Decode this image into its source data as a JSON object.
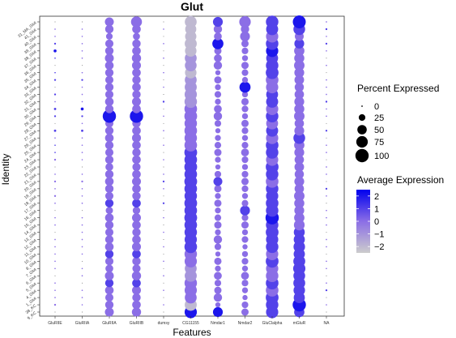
{
  "chart_data": {
    "type": "dot",
    "title": "Glut",
    "xlabel": "Features",
    "ylabel": "Identity",
    "features": [
      "GluRIIE",
      "GluRIIA",
      "GluRIIA",
      "GluRIIB",
      "dumsy",
      "CG11155",
      "Nmdar1",
      "Nmdar2",
      "GluClalpha",
      "mGluR",
      "NA"
    ],
    "identities": [
      "9_KC",
      "38_KC",
      "1_Glut",
      "4_Glut",
      "5_Glut",
      "6_Glut",
      "7_Glut",
      "8_Glut",
      "10_Glut",
      "11_Glut",
      "12_Glut",
      "13_Glut",
      "14_Glut",
      "15_Glut",
      "16_Glut",
      "17_Glut",
      "18_Glut",
      "19_Glut",
      "20_Glut",
      "21_Glut",
      "22_Glut",
      "23_Glut",
      "24_Glut",
      "25_Glut",
      "26_Glut",
      "27_Glut",
      "28_Glut",
      "29_Glut",
      "30_Glut",
      "31_Glut",
      "32_Glut",
      "33_Glut",
      "34_Glut",
      "35_Glut",
      "36_Glut",
      "37_Glut",
      "38_Glut",
      "39_Glut",
      "40_Glut",
      "41_Glut",
      "31_MA_Glut"
    ],
    "colorbar_range": [
      -2.5,
      2.5
    ],
    "color_low": "#cccccc",
    "color_high": "#0000ee",
    "size_legend": {
      "title": "Percent Expressed",
      "values": [
        0,
        25,
        50,
        75,
        100
      ],
      "labels": [
        "0",
        "25",
        "50",
        "75",
        "100"
      ]
    },
    "color_legend": {
      "title": "Average Expression",
      "ticks": [
        2,
        1,
        0,
        -1,
        -2
      ],
      "labels": [
        "2",
        "1",
        "0",
        "−1",
        "−2"
      ]
    },
    "columns": [
      {
        "feature": "GluRIIE",
        "pct": [
          0,
          2,
          1,
          1,
          1,
          0,
          1,
          1,
          1,
          1,
          1,
          0,
          1,
          1,
          0,
          1,
          2,
          1,
          2,
          1,
          0,
          2,
          1,
          1,
          1,
          3,
          0,
          2,
          3,
          1,
          2,
          0,
          2,
          1,
          0,
          1,
          5,
          2,
          1,
          1,
          0
        ],
        "avg": [
          0,
          0,
          0,
          0,
          0,
          0,
          0,
          0,
          0,
          0,
          0,
          0,
          0,
          0,
          0,
          0,
          0,
          0,
          0,
          0,
          0,
          0,
          1,
          1,
          0,
          1,
          0,
          1,
          1,
          0,
          1,
          0,
          1,
          1,
          0,
          1,
          2,
          1,
          0,
          0,
          0
        ]
      },
      {
        "feature": "GluRIIA",
        "pct": [
          0,
          1,
          1,
          1,
          0,
          1,
          1,
          0,
          1,
          1,
          1,
          1,
          1,
          1,
          0,
          1,
          1,
          1,
          2,
          1,
          0,
          1,
          1,
          1,
          1,
          3,
          1,
          2,
          5,
          1,
          1,
          1,
          2,
          1,
          0,
          1,
          1,
          1,
          1,
          1,
          0
        ],
        "avg": [
          0,
          0,
          0,
          0,
          0,
          0,
          0,
          0,
          0,
          0,
          0,
          0,
          0,
          0,
          0,
          0,
          0,
          0,
          0,
          0,
          0,
          0,
          0,
          0,
          0,
          1,
          0,
          1,
          2,
          0,
          0,
          0,
          1,
          0,
          0,
          0,
          0,
          0,
          0,
          0,
          0
        ]
      },
      {
        "feature": "GluRIIA",
        "pct": [
          45,
          40,
          38,
          42,
          40,
          45,
          35,
          38,
          40,
          42,
          40,
          38,
          40,
          42,
          30,
          40,
          38,
          40,
          42,
          40,
          35,
          40,
          38,
          40,
          42,
          40,
          38,
          100,
          40,
          42,
          38,
          40,
          38,
          40,
          42,
          45,
          40,
          38,
          25,
          40,
          45
        ],
        "avg": [
          0,
          0,
          0,
          0,
          1,
          0,
          0,
          0,
          1,
          0,
          0,
          0,
          0,
          0,
          0,
          1,
          0,
          0,
          0,
          0,
          0,
          0,
          0,
          0,
          0,
          0,
          0,
          2,
          0,
          0,
          0,
          0,
          0,
          0,
          0,
          0,
          0,
          0,
          0,
          0,
          0
        ]
      },
      {
        "feature": "GluRIIB",
        "pct": [
          48,
          42,
          40,
          45,
          42,
          48,
          38,
          40,
          42,
          45,
          42,
          40,
          42,
          45,
          32,
          42,
          40,
          42,
          45,
          42,
          38,
          42,
          40,
          42,
          45,
          42,
          40,
          100,
          42,
          45,
          40,
          42,
          40,
          42,
          45,
          48,
          42,
          40,
          28,
          42,
          68
        ],
        "avg": [
          0,
          0,
          0,
          0,
          1,
          0,
          0,
          0,
          1,
          0,
          0,
          0,
          0,
          0,
          0,
          1,
          0,
          0,
          0,
          0,
          0,
          0,
          0,
          0,
          0,
          0,
          0,
          2,
          0,
          0,
          0,
          0,
          0,
          0,
          0,
          0,
          0,
          0,
          0,
          0,
          0
        ]
      },
      {
        "feature": "dumsy",
        "pct": [
          0,
          1,
          0,
          1,
          0,
          1,
          0,
          1,
          0,
          1,
          0,
          1,
          0,
          1,
          0,
          2,
          0,
          1,
          2,
          1,
          0,
          1,
          0,
          1,
          0,
          1,
          0,
          1,
          0,
          2,
          0,
          1,
          0,
          1,
          0,
          1,
          0,
          1,
          0,
          1,
          0
        ],
        "avg": [
          0,
          0,
          0,
          0,
          0,
          0,
          0,
          0,
          0,
          0,
          0,
          0,
          0,
          0,
          0,
          1,
          0,
          0,
          1,
          0,
          0,
          0,
          0,
          0,
          0,
          0,
          0,
          0,
          0,
          1,
          0,
          0,
          0,
          0,
          0,
          0,
          0,
          0,
          0,
          0,
          0
        ]
      },
      {
        "feature": "CG11155",
        "pct": [
          85,
          82,
          80,
          85,
          88,
          82,
          80,
          85,
          88,
          90,
          85,
          88,
          90,
          92,
          90,
          92,
          88,
          90,
          92,
          90,
          92,
          90,
          92,
          90,
          88,
          90,
          88,
          92,
          90,
          88,
          85,
          82,
          80,
          75,
          78,
          80,
          75,
          82,
          72,
          70,
          80
        ],
        "avg": [
          2,
          -2,
          0,
          0,
          0,
          -1,
          -1,
          0,
          0,
          1,
          1,
          1,
          1,
          1,
          1,
          1,
          1,
          1,
          1,
          1,
          1,
          1,
          1,
          0,
          0,
          0,
          0,
          0,
          0,
          -1,
          -1,
          -1,
          -1,
          -2,
          -1,
          -1,
          -2,
          -2,
          -2,
          -2,
          -2
        ]
      },
      {
        "feature": "Nmdar1",
        "pct": [
          55,
          15,
          40,
          30,
          25,
          35,
          20,
          30,
          15,
          25,
          40,
          20,
          30,
          25,
          20,
          30,
          20,
          30,
          45,
          25,
          15,
          20,
          30,
          25,
          20,
          15,
          25,
          40,
          35,
          20,
          25,
          20,
          30,
          15,
          40,
          35,
          30,
          70,
          35,
          40,
          55
        ],
        "avg": [
          2,
          0,
          0,
          0,
          0,
          0,
          0,
          0,
          0,
          0,
          0,
          0,
          0,
          0,
          0,
          0,
          0,
          0,
          1,
          0,
          0,
          0,
          0,
          0,
          0,
          0,
          0,
          0,
          0,
          0,
          0,
          0,
          0,
          0,
          0,
          0,
          0,
          2,
          0,
          0,
          1
        ]
      },
      {
        "feature": "Nmdar2",
        "pct": [
          30,
          25,
          15,
          20,
          25,
          35,
          20,
          25,
          20,
          15,
          25,
          20,
          30,
          25,
          55,
          25,
          20,
          25,
          30,
          25,
          20,
          25,
          35,
          25,
          20,
          25,
          30,
          20,
          25,
          30,
          20,
          70,
          20,
          25,
          30,
          20,
          25,
          30,
          55,
          40,
          75
        ],
        "avg": [
          0,
          0,
          0,
          0,
          0,
          0,
          0,
          0,
          0,
          0,
          0,
          0,
          0,
          0,
          1,
          0,
          0,
          0,
          0,
          0,
          0,
          0,
          0,
          0,
          0,
          0,
          0,
          0,
          0,
          0,
          0,
          2,
          0,
          0,
          0,
          0,
          0,
          0,
          0,
          0,
          0
        ]
      },
      {
        "feature": "GluClalpha",
        "pct": [
          85,
          88,
          92,
          90,
          90,
          88,
          85,
          92,
          85,
          88,
          85,
          92,
          88,
          100,
          88,
          90,
          85,
          88,
          90,
          88,
          92,
          85,
          88,
          90,
          85,
          82,
          80,
          88,
          85,
          82,
          80,
          85,
          90,
          92,
          88,
          80,
          85,
          88,
          85,
          82,
          88
        ],
        "avg": [
          1,
          1,
          1,
          0,
          1,
          0,
          0,
          1,
          0,
          1,
          1,
          1,
          1,
          2,
          1,
          1,
          1,
          1,
          0,
          1,
          1,
          0,
          1,
          1,
          0,
          1,
          0,
          1,
          0,
          1,
          1,
          0,
          0,
          1,
          1,
          1,
          2,
          1,
          0,
          1,
          1
        ]
      },
      {
        "feature": "mGluR",
        "pct": [
          60,
          100,
          70,
          75,
          80,
          78,
          85,
          80,
          72,
          75,
          70,
          68,
          65,
          60,
          55,
          58,
          62,
          50,
          55,
          48,
          52,
          50,
          55,
          60,
          78,
          55,
          50,
          62,
          58,
          55,
          50,
          48,
          52,
          55,
          62,
          58,
          60,
          55,
          45,
          78,
          95
        ],
        "avg": [
          1,
          2,
          1,
          1,
          1,
          1,
          1,
          1,
          1,
          1,
          1,
          1,
          0,
          0,
          0,
          0,
          0,
          0,
          0,
          0,
          0,
          0,
          0,
          0,
          1,
          0,
          0,
          0,
          0,
          0,
          0,
          0,
          0,
          0,
          0,
          0,
          0,
          1,
          0,
          1,
          2
        ]
      },
      {
        "feature": "NA",
        "pct": [
          0,
          1,
          0,
          2,
          1,
          0,
          1,
          1,
          0,
          1,
          1,
          0,
          1,
          1,
          1,
          0,
          1,
          2,
          0,
          1,
          1,
          0,
          1,
          1,
          0,
          2,
          0,
          1,
          1,
          2,
          1,
          1,
          1,
          0,
          1,
          0,
          1,
          2,
          1,
          2,
          1
        ],
        "avg": [
          0,
          0,
          0,
          1,
          0,
          0,
          0,
          0,
          0,
          0,
          0,
          0,
          0,
          0,
          0,
          0,
          0,
          1,
          0,
          0,
          0,
          0,
          0,
          0,
          0,
          1,
          0,
          0,
          0,
          1,
          0,
          0,
          0,
          0,
          0,
          0,
          0,
          1,
          0,
          1,
          0
        ]
      }
    ]
  }
}
